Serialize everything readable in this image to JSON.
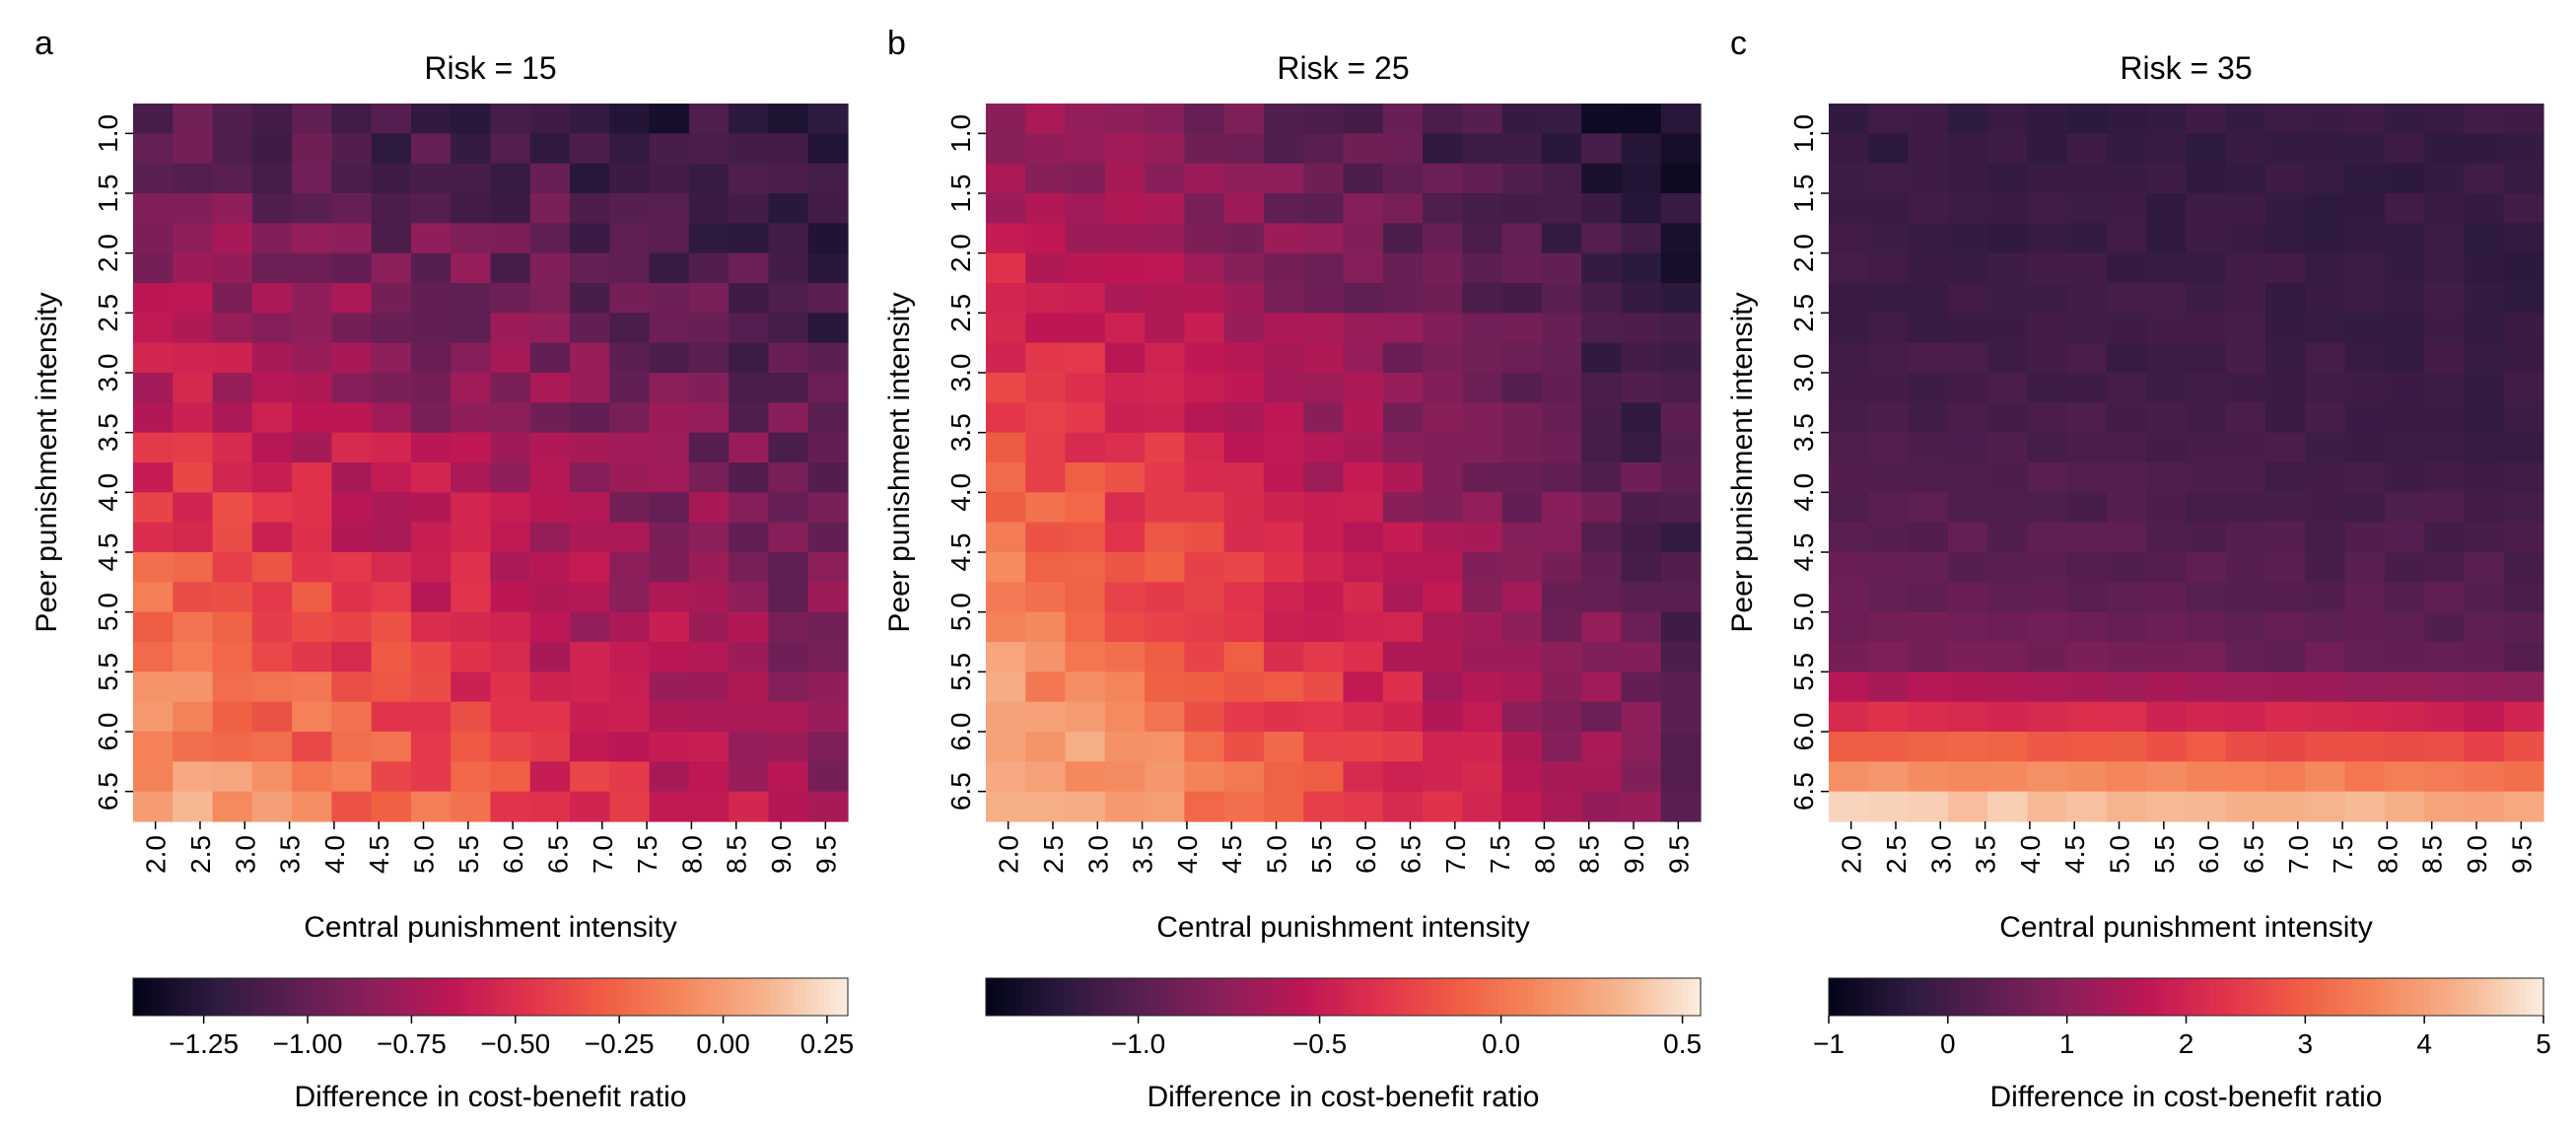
{
  "chart_data": [
    {
      "type": "heatmap",
      "panel_label": "a",
      "title": "Risk = 15",
      "xlabel": "Central punishment intensity",
      "ylabel": "Peer punishment intensity",
      "x_ticks": [
        "2.0",
        "2.5",
        "3.0",
        "3.5",
        "4.0",
        "4.5",
        "5.0",
        "5.5",
        "6.0",
        "6.5",
        "7.0",
        "7.5",
        "8.0",
        "8.5",
        "9.0",
        "9.5"
      ],
      "y_ticks": [
        "1.0",
        "1.5",
        "2.0",
        "2.5",
        "3.0",
        "3.5",
        "4.0",
        "4.5",
        "5.0",
        "5.5",
        "6.0",
        "6.5"
      ],
      "n_cols": 18,
      "n_rows": 24,
      "value_model": {
        "c0": 0.1,
        "c1": 0.28,
        "base": 0.12,
        "noise": 0.18,
        "seed": 17,
        "vmin": -1.42,
        "vmax": 0.3
      },
      "colorbar": {
        "label": "Difference in cost-benefit ratio",
        "vmin": -1.42,
        "vmax": 0.3,
        "ticks": [
          -1.25,
          -1.0,
          -0.75,
          -0.5,
          -0.25,
          0.0,
          0.25
        ],
        "tick_labels": [
          "−1.25",
          "−1.00",
          "−0.75",
          "−0.50",
          "−0.25",
          "0.00",
          "0.25"
        ]
      }
    },
    {
      "type": "heatmap",
      "panel_label": "b",
      "title": "Risk = 25",
      "xlabel": "Central punishment intensity",
      "ylabel": "Peer punishment intensity",
      "x_ticks": [
        "2.0",
        "2.5",
        "3.0",
        "3.5",
        "4.0",
        "4.5",
        "5.0",
        "5.5",
        "6.0",
        "6.5",
        "7.0",
        "7.5",
        "8.0",
        "8.5",
        "9.0",
        "9.5"
      ],
      "y_ticks": [
        "1.0",
        "1.5",
        "2.0",
        "2.5",
        "3.0",
        "3.5",
        "4.0",
        "4.5",
        "5.0",
        "5.5",
        "6.0",
        "6.5"
      ],
      "n_cols": 18,
      "n_rows": 24,
      "value_model": {
        "c0": 0.06,
        "c1": 0.22,
        "base": 0.3,
        "noise": 0.14,
        "seed": 29,
        "vmin": -1.42,
        "vmax": 0.55
      },
      "colorbar": {
        "label": "Difference in cost-benefit ratio",
        "vmin": -1.42,
        "vmax": 0.55,
        "ticks": [
          -1.0,
          -0.5,
          0.0,
          0.5
        ],
        "tick_labels": [
          "−1.0",
          "−0.5",
          "0.0",
          "0.5"
        ]
      }
    },
    {
      "type": "heatmap",
      "panel_label": "c",
      "title": "Risk = 35",
      "xlabel": "Central punishment intensity",
      "ylabel": "Peer punishment intensity",
      "x_ticks": [
        "2.0",
        "2.5",
        "3.0",
        "3.5",
        "4.0",
        "4.5",
        "5.0",
        "5.5",
        "6.0",
        "6.5",
        "7.0",
        "7.5",
        "8.0",
        "8.5",
        "9.0",
        "9.5"
      ],
      "y_ticks": [
        "1.0",
        "1.5",
        "2.0",
        "2.5",
        "3.0",
        "3.5",
        "4.0",
        "4.5",
        "5.0",
        "5.5",
        "6.0",
        "6.5"
      ],
      "n_cols": 18,
      "n_rows": 24,
      "value_model": {
        "c0": 0.13,
        "c1": 0.2,
        "base": 0.6,
        "noise": 0.05,
        "seed": 41,
        "vmin": -1,
        "vmax": 5
      },
      "colorbar": {
        "label": "Difference in cost-benefit ratio",
        "vmin": -1,
        "vmax": 5,
        "ticks": [
          -1,
          0,
          1,
          2,
          3,
          4,
          5
        ],
        "tick_labels": [
          "−1",
          "0",
          "1",
          "2",
          "3",
          "4",
          "5"
        ]
      }
    }
  ],
  "colormap": {
    "name": "rocket",
    "stops": [
      "#03051a",
      "#2e1a3f",
      "#5c1f52",
      "#8c1f5a",
      "#bd1655",
      "#e2334c",
      "#f06043",
      "#f58a5e",
      "#f6b48e",
      "#faebdd"
    ]
  }
}
